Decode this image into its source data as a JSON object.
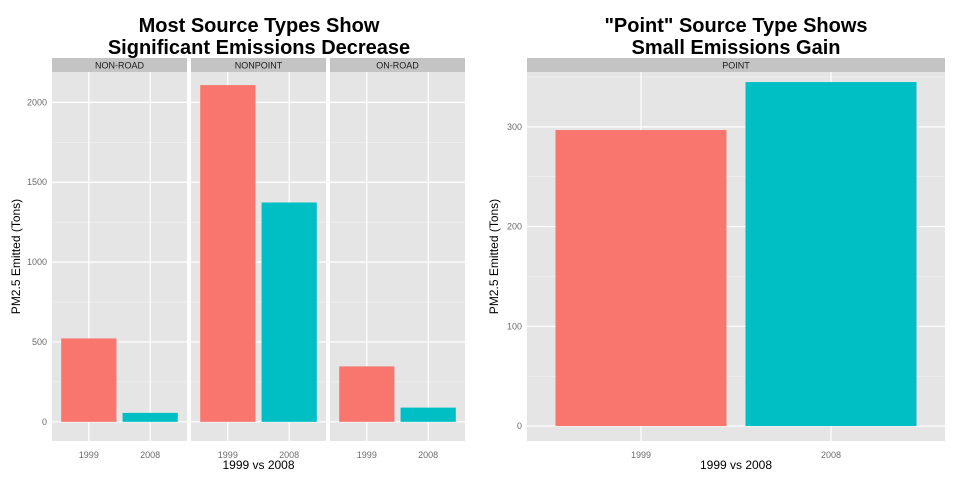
{
  "chart_data": [
    {
      "type": "bar",
      "title": [
        "Most Source Types Show",
        "Significant Emissions Decrease"
      ],
      "xlabel": "1999 vs 2008",
      "ylabel": "PM2.5 Emitted (Tons)",
      "ylim": [
        -120,
        2190
      ],
      "yticks": [
        0,
        500,
        1000,
        1500,
        2000
      ],
      "grid": true,
      "legend": "none",
      "categories": [
        "1999",
        "2008"
      ],
      "colors": {
        "1999": "#F8766D",
        "2008": "#00BFC4"
      },
      "facets": [
        {
          "label": "NON-ROAD",
          "values": [
            522,
            56
          ]
        },
        {
          "label": "NONPOINT",
          "values": [
            2108,
            1373
          ]
        },
        {
          "label": "ON-ROAD",
          "values": [
            347,
            89
          ]
        }
      ]
    },
    {
      "type": "bar",
      "title": [
        "\"Point\" Source Type Shows",
        "Small Emissions Gain"
      ],
      "xlabel": "1999 vs 2008",
      "ylabel": "PM2.5 Emitted (Tons)",
      "ylim": [
        -15,
        355
      ],
      "yticks": [
        0,
        100,
        200,
        300
      ],
      "grid": true,
      "legend": "none",
      "categories": [
        "1999",
        "2008"
      ],
      "colors": {
        "1999": "#F8766D",
        "2008": "#00BFC4"
      },
      "facets": [
        {
          "label": "POINT",
          "values": [
            296.8,
            344.9
          ]
        }
      ]
    }
  ]
}
